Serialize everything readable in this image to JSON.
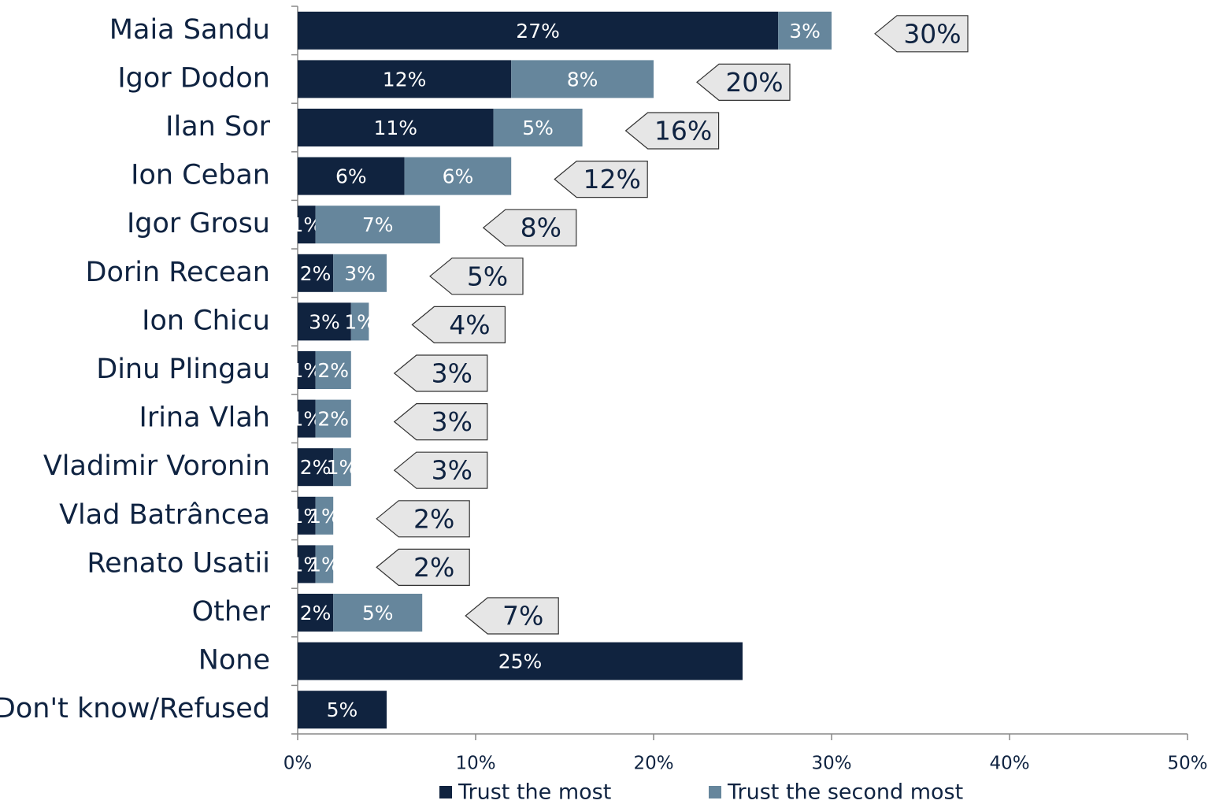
{
  "chart_data": {
    "type": "stacked_bar_horizontal",
    "categories": [
      "Maia Sandu",
      "Igor Dodon",
      "Ilan Sor",
      "Ion Ceban",
      "Igor Grosu",
      "Dorin Recean",
      "Ion Chicu",
      "Dinu Plingau",
      "Irina Vlah",
      "Vladimir Voronin",
      "Vlad Batrâncea",
      "Renato Usatii",
      "Other",
      "None",
      "Don't know/Refused"
    ],
    "series": [
      {
        "name": "Trust the most",
        "color": "#10233f",
        "values": [
          27,
          12,
          11,
          6,
          1,
          2,
          3,
          1,
          1,
          2,
          1,
          1,
          2,
          25,
          5
        ],
        "value_labels": [
          "27%",
          "12%",
          "11%",
          "6%",
          "1%",
          "2%",
          "3%",
          "1%",
          "1%",
          "2%",
          "1%",
          "1%",
          "2%",
          "25%",
          "5%"
        ]
      },
      {
        "name": "Trust the second most",
        "color": "#66869c",
        "values": [
          3,
          8,
          5,
          6,
          7,
          3,
          1,
          2,
          2,
          1,
          1,
          1,
          5,
          null,
          null
        ],
        "value_labels": [
          "3%",
          "8%",
          "5%",
          "6%",
          "7%",
          "3%",
          "1%",
          "2%",
          "2%",
          "1%",
          "1%",
          "1%",
          "5%",
          null,
          null
        ]
      }
    ],
    "totals": {
      "values": [
        30,
        20,
        16,
        12,
        8,
        5,
        4,
        3,
        3,
        3,
        2,
        2,
        7,
        null,
        null
      ],
      "value_labels": [
        "30%",
        "20%",
        "16%",
        "12%",
        "8%",
        "5%",
        "4%",
        "3%",
        "3%",
        "3%",
        "2%",
        "2%",
        "7%",
        null,
        null
      ]
    },
    "xlim": [
      0,
      50
    ],
    "xticks": [
      {
        "value": 0,
        "label": "0%"
      },
      {
        "value": 10,
        "label": "10%"
      },
      {
        "value": 20,
        "label": "20%"
      },
      {
        "value": 30,
        "label": "30%"
      },
      {
        "value": 40,
        "label": "40%"
      },
      {
        "value": 50,
        "label": "50%"
      }
    ],
    "legend": "bottom"
  }
}
